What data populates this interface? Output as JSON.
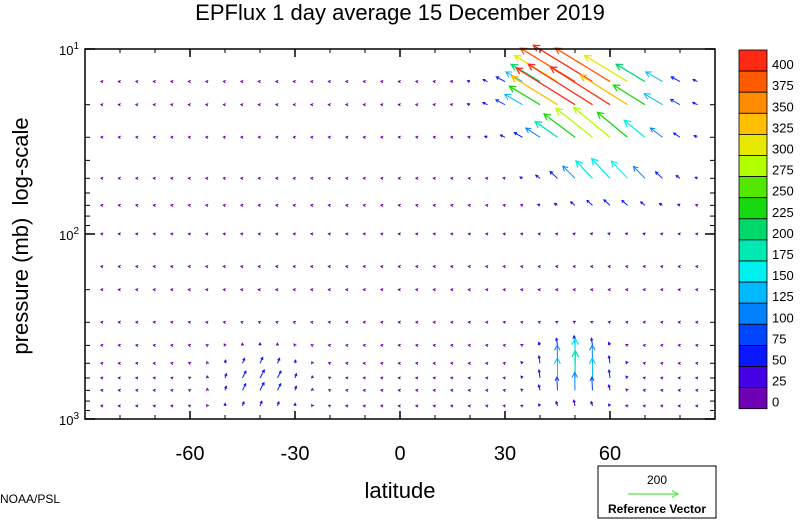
{
  "chart_data": {
    "type": "vector field",
    "title": "EPFlux  1 day average  15 December 2019",
    "xlabel": "latitude",
    "ylabel": "pressure (mb)  log-scale",
    "x_range": [
      -90,
      90
    ],
    "y_range_mb": [
      1000,
      10
    ],
    "y_scale": "log",
    "x_ticks": [
      {
        "value": -60,
        "label": "-60"
      },
      {
        "value": -30,
        "label": "-30"
      },
      {
        "value": 0,
        "label": "0"
      },
      {
        "value": 30,
        "label": "30"
      },
      {
        "value": 60,
        "label": "60"
      }
    ],
    "y_ticks": [
      {
        "value": 10,
        "base": "10",
        "exp": "1"
      },
      {
        "value": 100,
        "base": "10",
        "exp": "2"
      },
      {
        "value": 1000,
        "base": "10",
        "exp": "3"
      }
    ],
    "colorbar": {
      "levels": [
        "400",
        "375",
        "350",
        "325",
        "300",
        "275",
        "250",
        "225",
        "200",
        "175",
        "150",
        "125",
        "100",
        "75",
        "50",
        "25",
        "0"
      ],
      "colors": [
        "#ff2a14",
        "#ff5a00",
        "#ff8c00",
        "#ffbe00",
        "#e8e800",
        "#b4ff00",
        "#54e800",
        "#18d810",
        "#00d86e",
        "#00e8b4",
        "#00f0f0",
        "#00baff",
        "#0082ff",
        "#0046ff",
        "#0a18ff",
        "#4600e6",
        "#7000b4"
      ]
    },
    "reference_vector": {
      "value": "200",
      "label": "Reference Vector",
      "color": "#54e84c"
    },
    "credit": "NOAA/PSL"
  }
}
